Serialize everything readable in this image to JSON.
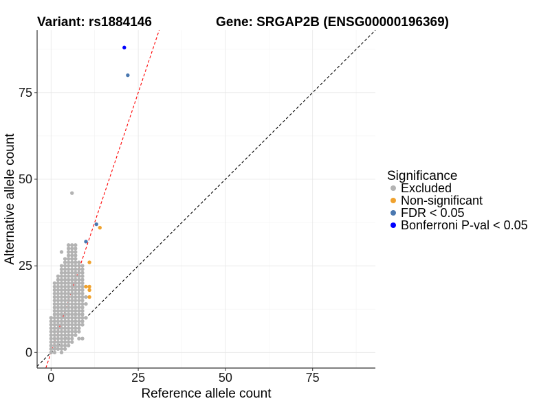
{
  "chart_data": {
    "type": "scatter",
    "title_left": "Variant: rs1884146",
    "title_right": "Gene: SRGAP2B (ENSG00000196369)",
    "xlabel": "Reference allele count",
    "ylabel": "Alternative allele count",
    "xlim": [
      -4,
      93
    ],
    "ylim": [
      -4.5,
      93
    ],
    "xticks": [
      0,
      25,
      50,
      75
    ],
    "yticks": [
      0,
      25,
      50,
      75
    ],
    "grid": true,
    "reference_lines": [
      {
        "name": "identity",
        "slope": 1,
        "intercept": 0,
        "color": "#000000",
        "style": "dashed"
      },
      {
        "name": "fit",
        "slope": 3.0,
        "intercept": 0,
        "color": "#ff0000",
        "style": "dashed"
      }
    ],
    "legend": {
      "title": "Significance",
      "position": "right",
      "entries": [
        {
          "label": "Excluded",
          "color": "#b3b3b3"
        },
        {
          "label": "Non-significant",
          "color": "#f0a22e"
        },
        {
          "label": "FDR < 0.05",
          "color": "#4a78b0"
        },
        {
          "label": "Bonferroni P-val < 0.05",
          "color": "#0000ff"
        }
      ]
    },
    "series": [
      {
        "name": "Excluded",
        "color": "#b3b3b3",
        "points": [
          [
            0,
            0
          ],
          [
            0,
            1
          ],
          [
            0,
            2
          ],
          [
            0,
            3
          ],
          [
            0,
            4
          ],
          [
            0,
            5
          ],
          [
            0,
            6
          ],
          [
            0,
            7
          ],
          [
            0,
            8
          ],
          [
            0,
            9
          ],
          [
            0,
            10
          ],
          [
            1,
            0
          ],
          [
            1,
            1
          ],
          [
            1,
            2
          ],
          [
            1,
            3
          ],
          [
            1,
            4
          ],
          [
            1,
            5
          ],
          [
            1,
            6
          ],
          [
            1,
            7
          ],
          [
            1,
            8
          ],
          [
            1,
            9
          ],
          [
            1,
            10
          ],
          [
            1,
            11
          ],
          [
            1,
            12
          ],
          [
            1,
            13
          ],
          [
            1,
            14
          ],
          [
            1,
            15
          ],
          [
            1,
            16
          ],
          [
            1,
            17
          ],
          [
            1,
            18
          ],
          [
            1,
            19
          ],
          [
            1,
            20
          ],
          [
            2,
            1
          ],
          [
            2,
            2
          ],
          [
            2,
            3
          ],
          [
            2,
            4
          ],
          [
            2,
            5
          ],
          [
            2,
            6
          ],
          [
            2,
            7
          ],
          [
            2,
            8
          ],
          [
            2,
            9
          ],
          [
            2,
            10
          ],
          [
            2,
            11
          ],
          [
            2,
            12
          ],
          [
            2,
            13
          ],
          [
            2,
            14
          ],
          [
            2,
            15
          ],
          [
            2,
            16
          ],
          [
            2,
            17
          ],
          [
            2,
            18
          ],
          [
            2,
            19
          ],
          [
            2,
            20
          ],
          [
            2,
            21
          ],
          [
            2,
            22
          ],
          [
            3,
            0
          ],
          [
            3,
            1
          ],
          [
            3,
            2
          ],
          [
            3,
            3
          ],
          [
            3,
            4
          ],
          [
            3,
            5
          ],
          [
            3,
            6
          ],
          [
            3,
            7
          ],
          [
            3,
            8
          ],
          [
            3,
            9
          ],
          [
            3,
            10
          ],
          [
            3,
            11
          ],
          [
            3,
            12
          ],
          [
            3,
            13
          ],
          [
            3,
            14
          ],
          [
            3,
            15
          ],
          [
            3,
            16
          ],
          [
            3,
            17
          ],
          [
            3,
            18
          ],
          [
            3,
            19
          ],
          [
            3,
            20
          ],
          [
            3,
            21
          ],
          [
            3,
            22
          ],
          [
            3,
            23
          ],
          [
            3,
            24
          ],
          [
            3,
            25
          ],
          [
            3,
            29
          ],
          [
            4,
            1
          ],
          [
            4,
            2
          ],
          [
            4,
            3
          ],
          [
            4,
            4
          ],
          [
            4,
            5
          ],
          [
            4,
            6
          ],
          [
            4,
            7
          ],
          [
            4,
            8
          ],
          [
            4,
            9
          ],
          [
            4,
            10
          ],
          [
            4,
            11
          ],
          [
            4,
            12
          ],
          [
            4,
            13
          ],
          [
            4,
            14
          ],
          [
            4,
            15
          ],
          [
            4,
            16
          ],
          [
            4,
            17
          ],
          [
            4,
            18
          ],
          [
            4,
            19
          ],
          [
            4,
            20
          ],
          [
            4,
            21
          ],
          [
            4,
            22
          ],
          [
            4,
            23
          ],
          [
            4,
            24
          ],
          [
            4,
            25
          ],
          [
            4,
            26
          ],
          [
            4,
            27
          ],
          [
            5,
            2
          ],
          [
            5,
            3
          ],
          [
            5,
            4
          ],
          [
            5,
            5
          ],
          [
            5,
            6
          ],
          [
            5,
            7
          ],
          [
            5,
            8
          ],
          [
            5,
            9
          ],
          [
            5,
            10
          ],
          [
            5,
            11
          ],
          [
            5,
            12
          ],
          [
            5,
            13
          ],
          [
            5,
            14
          ],
          [
            5,
            15
          ],
          [
            5,
            16
          ],
          [
            5,
            17
          ],
          [
            5,
            18
          ],
          [
            5,
            19
          ],
          [
            5,
            20
          ],
          [
            5,
            21
          ],
          [
            5,
            22
          ],
          [
            5,
            23
          ],
          [
            5,
            24
          ],
          [
            5,
            25
          ],
          [
            5,
            26
          ],
          [
            5,
            27
          ],
          [
            5,
            28
          ],
          [
            5,
            29
          ],
          [
            5,
            30
          ],
          [
            5,
            31
          ],
          [
            6,
            3
          ],
          [
            6,
            4
          ],
          [
            6,
            5
          ],
          [
            6,
            6
          ],
          [
            6,
            7
          ],
          [
            6,
            8
          ],
          [
            6,
            9
          ],
          [
            6,
            10
          ],
          [
            6,
            11
          ],
          [
            6,
            12
          ],
          [
            6,
            13
          ],
          [
            6,
            14
          ],
          [
            6,
            15
          ],
          [
            6,
            16
          ],
          [
            6,
            17
          ],
          [
            6,
            18
          ],
          [
            6,
            19
          ],
          [
            6,
            20
          ],
          [
            6,
            21
          ],
          [
            6,
            22
          ],
          [
            6,
            23
          ],
          [
            6,
            24
          ],
          [
            6,
            25
          ],
          [
            6,
            26
          ],
          [
            6,
            27
          ],
          [
            6,
            28
          ],
          [
            6,
            29
          ],
          [
            6,
            30
          ],
          [
            6,
            31
          ],
          [
            6,
            46
          ],
          [
            7,
            5
          ],
          [
            7,
            6
          ],
          [
            7,
            7
          ],
          [
            7,
            8
          ],
          [
            7,
            9
          ],
          [
            7,
            10
          ],
          [
            7,
            11
          ],
          [
            7,
            12
          ],
          [
            7,
            13
          ],
          [
            7,
            14
          ],
          [
            7,
            15
          ],
          [
            7,
            16
          ],
          [
            7,
            17
          ],
          [
            7,
            18
          ],
          [
            7,
            19
          ],
          [
            7,
            20
          ],
          [
            7,
            21
          ],
          [
            7,
            22
          ],
          [
            7,
            23
          ],
          [
            7,
            24
          ],
          [
            7,
            25
          ],
          [
            7,
            26
          ],
          [
            7,
            27
          ],
          [
            7,
            28
          ],
          [
            7,
            29
          ],
          [
            7,
            30
          ],
          [
            7,
            31
          ],
          [
            8,
            4
          ],
          [
            8,
            6
          ],
          [
            8,
            7
          ],
          [
            8,
            8
          ],
          [
            8,
            9
          ],
          [
            8,
            10
          ],
          [
            8,
            11
          ],
          [
            8,
            12
          ],
          [
            8,
            13
          ],
          [
            8,
            14
          ],
          [
            8,
            15
          ],
          [
            8,
            16
          ],
          [
            8,
            17
          ],
          [
            8,
            18
          ],
          [
            8,
            19
          ],
          [
            8,
            20
          ],
          [
            8,
            21
          ],
          [
            8,
            22
          ],
          [
            8,
            23
          ],
          [
            8,
            24
          ],
          [
            8,
            25
          ],
          [
            8,
            26
          ],
          [
            9,
            4
          ],
          [
            9,
            8
          ],
          [
            9,
            9
          ],
          [
            9,
            10
          ],
          [
            9,
            11
          ],
          [
            9,
            12
          ],
          [
            9,
            13
          ],
          [
            9,
            14
          ],
          [
            9,
            15
          ],
          [
            9,
            16
          ],
          [
            9,
            17
          ],
          [
            9,
            18
          ],
          [
            9,
            19
          ],
          [
            9,
            20
          ],
          [
            9,
            21
          ],
          [
            9,
            22
          ],
          [
            9,
            23
          ],
          [
            9,
            24
          ],
          [
            9,
            25
          ],
          [
            10,
            10
          ],
          [
            10,
            14
          ],
          [
            10,
            16
          ]
        ]
      },
      {
        "name": "Non-significant",
        "color": "#f0a22e",
        "points": [
          [
            10,
            19
          ],
          [
            11,
            19
          ],
          [
            11,
            18
          ],
          [
            11,
            16
          ],
          [
            11,
            26
          ],
          [
            14,
            36
          ]
        ]
      },
      {
        "name": "FDR < 0.05",
        "color": "#4a78b0",
        "points": [
          [
            10,
            32
          ],
          [
            13,
            37
          ],
          [
            22,
            80
          ]
        ]
      },
      {
        "name": "Bonferroni P-val < 0.05",
        "color": "#0000ff",
        "points": [
          [
            21,
            88
          ]
        ]
      }
    ]
  }
}
